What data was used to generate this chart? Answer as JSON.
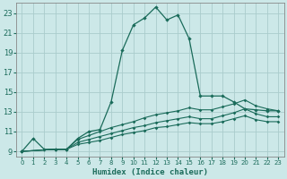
{
  "xlabel": "Humidex (Indice chaleur)",
  "ylabel": "",
  "background_color": "#cce8e8",
  "grid_color": "#aacccc",
  "line_color": "#1a6b5a",
  "xlim": [
    -0.5,
    23.5
  ],
  "ylim": [
    8.5,
    24.0
  ],
  "xticks": [
    0,
    1,
    2,
    3,
    4,
    5,
    6,
    7,
    8,
    9,
    10,
    11,
    12,
    13,
    14,
    15,
    16,
    17,
    18,
    19,
    20,
    21,
    22,
    23
  ],
  "yticks": [
    9,
    11,
    13,
    15,
    17,
    19,
    21,
    23
  ],
  "curve1_x": [
    0,
    1,
    2,
    3,
    4,
    5,
    6,
    7,
    8,
    9,
    10,
    11,
    12,
    13,
    14,
    15,
    16,
    17,
    18,
    19,
    20,
    21,
    22,
    23
  ],
  "curve1_y": [
    9.0,
    10.3,
    9.2,
    9.2,
    9.2,
    10.3,
    11.0,
    11.2,
    14.0,
    19.2,
    21.8,
    22.5,
    23.6,
    22.3,
    22.8,
    20.4,
    14.6,
    14.6,
    14.6,
    14.0,
    13.3,
    13.2,
    13.1,
    13.1
  ],
  "curve2_x": [
    0,
    3,
    4,
    5,
    6,
    7,
    8,
    9,
    10,
    11,
    12,
    13,
    14,
    15,
    16,
    17,
    18,
    19,
    20,
    21,
    22,
    23
  ],
  "curve2_y": [
    9.0,
    9.2,
    9.2,
    10.2,
    10.6,
    11.0,
    11.4,
    11.7,
    12.0,
    12.4,
    12.7,
    12.9,
    13.1,
    13.4,
    13.2,
    13.2,
    13.5,
    13.8,
    14.2,
    13.6,
    13.3,
    13.1
  ],
  "curve3_x": [
    0,
    3,
    4,
    5,
    6,
    7,
    8,
    9,
    10,
    11,
    12,
    13,
    14,
    15,
    16,
    17,
    18,
    19,
    20,
    21,
    22,
    23
  ],
  "curve3_y": [
    9.0,
    9.2,
    9.2,
    9.9,
    10.2,
    10.5,
    10.8,
    11.1,
    11.4,
    11.6,
    11.9,
    12.1,
    12.3,
    12.5,
    12.3,
    12.3,
    12.6,
    12.9,
    13.3,
    12.8,
    12.5,
    12.5
  ],
  "curve4_x": [
    0,
    3,
    4,
    5,
    6,
    7,
    8,
    9,
    10,
    11,
    12,
    13,
    14,
    15,
    16,
    17,
    18,
    19,
    20,
    21,
    22,
    23
  ],
  "curve4_y": [
    9.0,
    9.2,
    9.2,
    9.7,
    9.9,
    10.1,
    10.4,
    10.7,
    10.9,
    11.1,
    11.4,
    11.5,
    11.7,
    11.9,
    11.8,
    11.8,
    12.0,
    12.3,
    12.6,
    12.2,
    12.0,
    12.0
  ]
}
